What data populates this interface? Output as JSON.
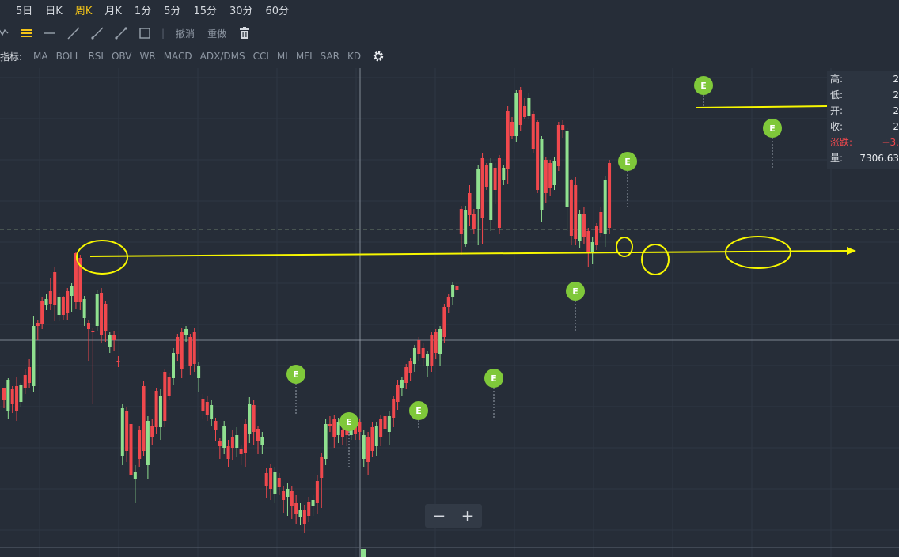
{
  "periods": [
    {
      "label": "5日",
      "active": false
    },
    {
      "label": "日K",
      "active": false
    },
    {
      "label": "周K",
      "active": true
    },
    {
      "label": "月K",
      "active": false
    },
    {
      "label": "1分",
      "active": false
    },
    {
      "label": "5分",
      "active": false
    },
    {
      "label": "15分",
      "active": false
    },
    {
      "label": "30分",
      "active": false
    },
    {
      "label": "60分",
      "active": false
    }
  ],
  "toolbar": {
    "tools": [
      "polyline-icon",
      "parallel-lines-icon",
      "horizontal-line-icon",
      "trend-line-icon",
      "ray-line-icon",
      "arrow-line-icon",
      "rectangle-icon"
    ],
    "undo_label": "撤消",
    "redo_label": "重做",
    "delete_icon": "trash-icon"
  },
  "indicators": {
    "label": "指标:",
    "items": [
      "MA",
      "BOLL",
      "RSI",
      "OBV",
      "WR",
      "MACD",
      "ADX/DMS",
      "CCI",
      "MI",
      "MFI",
      "SAR",
      "KD"
    ],
    "settings_icon": "gear-icon"
  },
  "info_panel": {
    "high_label": "高:",
    "high_value": "2",
    "low_label": "低:",
    "low_value": "2",
    "open_label": "开:",
    "open_value": "2",
    "close_label": "收:",
    "close_value": "2",
    "change_label": "涨跌:",
    "change_value": "+3.",
    "volume_label": "量:",
    "volume_value": "7306.63"
  },
  "zoom": {
    "minus_label": "−",
    "plus_label": "+"
  },
  "colors": {
    "up": "#f0484d",
    "down": "#8fe08f",
    "background": "#262d38",
    "annotation": "#f7f700",
    "marker": "#7fc83a"
  },
  "earnings_marker_label": "E",
  "chart_data": {
    "type": "candlestick",
    "candles": [
      [
        490,
        506,
        516,
        490
      ],
      [
        480,
        520,
        530,
        478
      ],
      [
        492,
        510,
        522,
        488
      ],
      [
        488,
        520,
        532,
        476
      ],
      [
        486,
        508,
        514,
        484
      ],
      [
        474,
        490,
        498,
        466
      ],
      [
        464,
        484,
        490,
        454
      ],
      [
        412,
        488,
        496,
        400
      ],
      [
        408,
        412,
        430,
        404
      ],
      [
        380,
        410,
        416,
        376
      ],
      [
        378,
        386,
        392,
        372
      ],
      [
        368,
        384,
        392,
        352
      ],
      [
        344,
        386,
        406,
        338
      ],
      [
        376,
        398,
        406,
        370
      ],
      [
        376,
        398,
        404,
        374
      ],
      [
        368,
        396,
        404,
        364
      ],
      [
        362,
        374,
        394,
        358
      ],
      [
        320,
        382,
        390,
        318
      ],
      [
        326,
        382,
        392,
        322
      ],
      [
        378,
        402,
        412,
        374
      ],
      [
        408,
        416,
        456,
        404
      ],
      [
        418,
        420,
        510,
        414
      ],
      [
        372,
        412,
        418,
        366
      ],
      [
        370,
        424,
        434,
        364
      ],
      [
        384,
        418,
        432,
        380
      ],
      [
        424,
        438,
        446,
        420
      ],
      [
        424,
        430,
        444,
        418
      ],
      [
        456,
        458,
        464,
        450
      ],
      [
        516,
        576,
        588,
        510
      ],
      [
        520,
        570,
        584,
        514
      ],
      [
        536,
        600,
        626,
        530
      ],
      [
        596,
        606,
        636,
        588
      ],
      [
        544,
        580,
        590,
        538
      ],
      [
        488,
        570,
        576,
        482
      ],
      [
        532,
        588,
        606,
        526
      ],
      [
        538,
        552,
        562,
        530
      ],
      [
        494,
        540,
        548,
        490
      ],
      [
        500,
        540,
        556,
        492
      ],
      [
        470,
        532,
        540,
        466
      ],
      [
        476,
        500,
        506,
        472
      ],
      [
        446,
        478,
        486,
        440
      ],
      [
        426,
        448,
        456,
        422
      ],
      [
        420,
        466,
        478,
        414
      ],
      [
        416,
        424,
        432,
        412
      ],
      [
        426,
        462,
        474,
        422
      ],
      [
        420,
        460,
        470,
        414
      ],
      [
        462,
        478,
        496,
        458
      ],
      [
        504,
        520,
        530,
        498
      ],
      [
        508,
        524,
        532,
        500
      ],
      [
        512,
        530,
        538,
        506
      ],
      [
        532,
        544,
        558,
        528
      ],
      [
        558,
        564,
        580,
        554
      ],
      [
        538,
        566,
        574,
        532
      ],
      [
        564,
        580,
        590,
        556
      ],
      [
        552,
        566,
        582,
        544
      ],
      [
        550,
        566,
        578,
        540
      ],
      [
        568,
        574,
        588,
        562
      ],
      [
        536,
        572,
        590,
        530
      ],
      [
        510,
        548,
        560,
        502
      ],
      [
        512,
        546,
        562,
        506
      ],
      [
        542,
        558,
        574,
        538
      ],
      [
        552,
        562,
        574,
        546
      ],
      [
        598,
        614,
        630,
        592
      ],
      [
        592,
        618,
        632,
        586
      ],
      [
        596,
        624,
        636,
        590
      ],
      [
        604,
        616,
        626,
        598
      ],
      [
        620,
        632,
        648,
        614
      ],
      [
        618,
        628,
        652,
        610
      ],
      [
        620,
        640,
        656,
        614
      ],
      [
        636,
        650,
        662,
        626
      ],
      [
        644,
        654,
        664,
        636
      ],
      [
        644,
        662,
        674,
        638
      ],
      [
        634,
        652,
        660,
        628
      ],
      [
        632,
        640,
        652,
        626
      ],
      [
        608,
        636,
        650,
        600
      ],
      [
        578,
        604,
        642,
        572
      ],
      [
        536,
        580,
        588,
        530
      ],
      [
        536,
        538,
        546,
        526
      ],
      [
        530,
        552,
        566,
        524
      ],
      [
        534,
        550,
        560,
        528
      ],
      [
        544,
        552,
        562,
        540
      ],
      [
        532,
        550,
        564,
        528
      ],
      [
        532,
        550,
        556,
        526
      ],
      [
        528,
        548,
        556,
        524
      ],
      [
        534,
        546,
        556,
        530
      ],
      [
        550,
        580,
        590,
        544
      ],
      [
        552,
        584,
        600,
        546
      ],
      [
        540,
        570,
        578,
        534
      ],
      [
        538,
        564,
        576,
        534
      ],
      [
        530,
        552,
        564,
        524
      ],
      [
        526,
        542,
        548,
        520
      ],
      [
        526,
        546,
        562,
        520
      ],
      [
        504,
        528,
        540,
        500
      ],
      [
        486,
        508,
        518,
        480
      ],
      [
        480,
        490,
        500,
        476
      ],
      [
        464,
        484,
        492,
        460
      ],
      [
        456,
        472,
        482,
        452
      ],
      [
        440,
        460,
        470,
        436
      ],
      [
        430,
        448,
        456,
        426
      ],
      [
        440,
        452,
        462,
        434
      ],
      [
        448,
        462,
        476,
        444
      ],
      [
        424,
        462,
        470,
        420
      ],
      [
        420,
        446,
        454,
        416
      ],
      [
        416,
        448,
        462,
        412
      ],
      [
        388,
        426,
        434,
        384
      ],
      [
        376,
        388,
        396,
        372
      ],
      [
        360,
        376,
        386,
        356
      ],
      [
        362,
        366,
        370,
        358
      ],
      [
        264,
        296,
        322,
        260
      ],
      [
        266,
        308,
        312,
        260
      ],
      [
        244,
        272,
        286,
        234
      ],
      [
        270,
        290,
        296,
        264
      ],
      [
        214,
        264,
        310,
        208
      ],
      [
        200,
        276,
        308,
        194
      ],
      [
        208,
        236,
        240,
        206
      ],
      [
        206,
        278,
        292,
        200
      ],
      [
        212,
        240,
        258,
        206
      ],
      [
        200,
        288,
        296,
        196
      ],
      [
        212,
        228,
        234,
        208
      ],
      [
        140,
        214,
        232,
        134
      ],
      [
        154,
        172,
        176,
        148
      ],
      [
        118,
        172,
        180,
        114
      ],
      [
        114,
        158,
        166,
        110
      ],
      [
        134,
        148,
        150,
        124
      ],
      [
        124,
        146,
        150,
        118
      ],
      [
        144,
        188,
        194,
        140
      ],
      [
        154,
        240,
        244,
        152
      ],
      [
        176,
        266,
        280,
        172
      ],
      [
        202,
        244,
        256,
        198
      ],
      [
        206,
        238,
        248,
        202
      ],
      [
        204,
        234,
        240,
        198
      ],
      [
        158,
        210,
        216,
        154
      ],
      [
        158,
        164,
        174,
        152
      ],
      [
        166,
        262,
        292,
        162
      ],
      [
        228,
        298,
        310,
        226
      ],
      [
        234,
        302,
        310,
        224
      ],
      [
        270,
        304,
        314,
        266
      ],
      [
        270,
        300,
        308,
        262
      ],
      [
        292,
        318,
        338,
        288
      ],
      [
        306,
        318,
        334,
        300
      ],
      [
        286,
        310,
        316,
        282
      ],
      [
        268,
        294,
        300,
        262
      ],
      [
        228,
        296,
        312,
        222
      ],
      [
        206,
        288,
        296,
        202
      ]
    ],
    "guide_lines": {
      "horizontal_price_line": "y=430",
      "last_price_dashed": "y=290"
    }
  }
}
